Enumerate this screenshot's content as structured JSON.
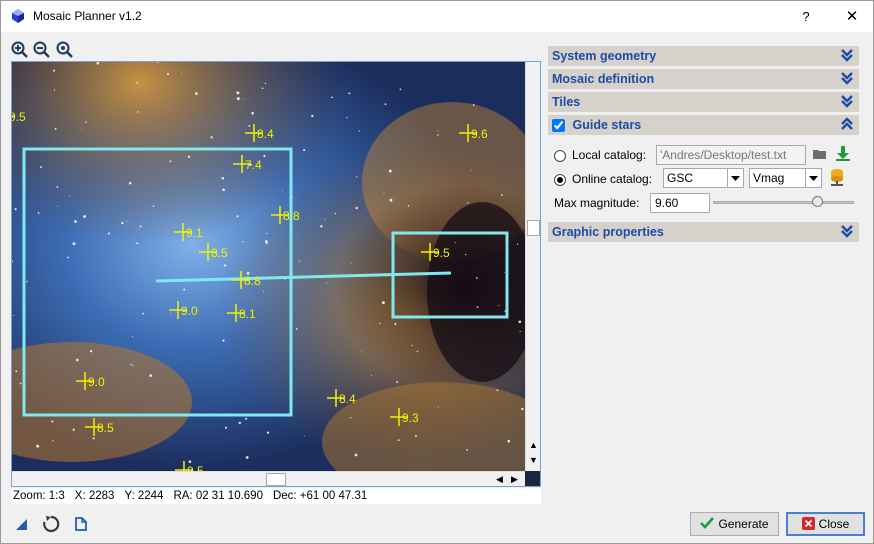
{
  "window": {
    "title": "Mosaic Planner v1.2",
    "help": "?",
    "close": "✕"
  },
  "status": {
    "zoom": "Zoom: 1:3",
    "x": "X: 2283",
    "y": "Y: 2244",
    "ra": "RA: 02 31 10.690",
    "dec": "Dec: +61 00 47.31"
  },
  "stars": [
    {
      "label": "9.5"
    },
    {
      "label": "8.4"
    },
    {
      "label": "9.6"
    },
    {
      "label": "7.4"
    },
    {
      "label": "8.8"
    },
    {
      "label": "9.1"
    },
    {
      "label": "8.5"
    },
    {
      "label": "9.5"
    },
    {
      "label": "8.8"
    },
    {
      "label": "9.0"
    },
    {
      "label": "8.1"
    },
    {
      "label": "9.0"
    },
    {
      "label": "8.4"
    },
    {
      "label": "9.3"
    },
    {
      "label": "8.5"
    },
    {
      "label": "9.5"
    }
  ],
  "panels": {
    "system_geometry": "System geometry",
    "mosaic_definition": "Mosaic definition",
    "tiles": "Tiles",
    "guide_stars": "Guide stars",
    "graphic_properties": "Graphic properties"
  },
  "guide": {
    "local_label": "Local catalog:",
    "local_path": "'Andres/Desktop/test.txt",
    "online_label": "Online catalog:",
    "catalog": "GSC",
    "filter": "Vmag",
    "maxmag_label": "Max magnitude:",
    "maxmag_value": "9.60",
    "maxmag_slider_fraction": 0.72
  },
  "buttons": {
    "generate": "Generate",
    "close": "Close"
  },
  "colors": {
    "accent": "#1c4ca8",
    "tile": "#7fe9ef",
    "star": "#f2f200"
  }
}
